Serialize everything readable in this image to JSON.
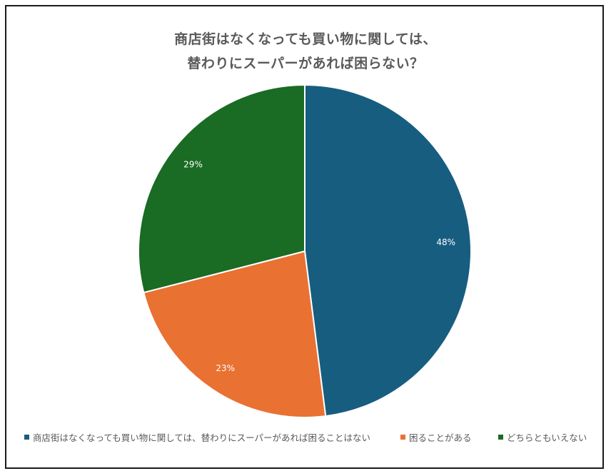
{
  "chart_data": {
    "type": "pie",
    "title_lines": [
      "商店街はなくなっても買い物に関しては、",
      "替わりにスーパーがあれば困らない？"
    ],
    "slices": [
      {
        "label": "商店街はなくなっても買い物に関しては、替わりにスーパーがあれば困ることはない",
        "value": 48,
        "display": "48%",
        "color": "#175d80"
      },
      {
        "label": "困ることがある",
        "value": 23,
        "display": "23%",
        "color": "#e97132"
      },
      {
        "label": "どちらともいえない",
        "value": 29,
        "display": "29%",
        "color": "#1a6b24"
      }
    ],
    "legend_position": "bottom"
  }
}
